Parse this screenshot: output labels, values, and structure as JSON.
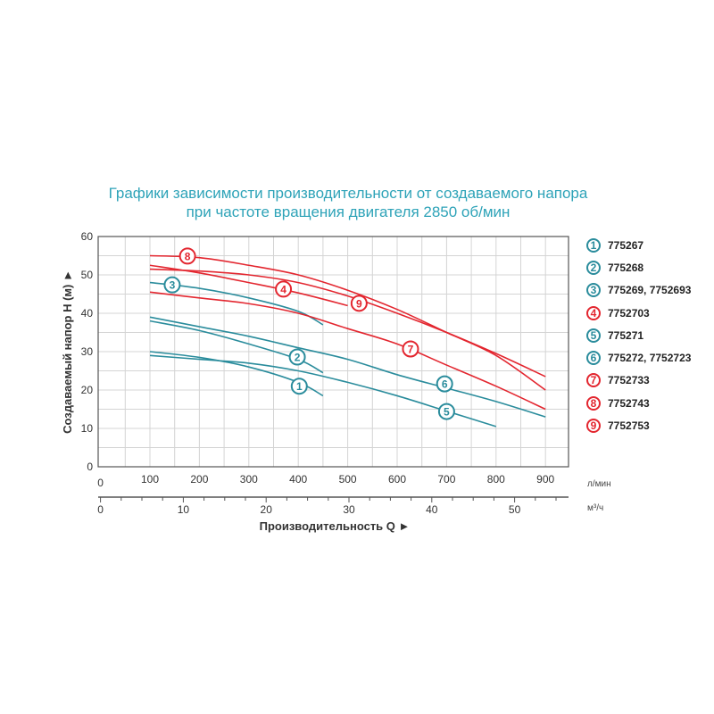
{
  "chart_data": {
    "type": "line",
    "title": "Графики зависимости производительности от создаваемого напора",
    "subtitle": "при частоте вращения двигателя 2850 об/мин",
    "ylabel": "Создаваемый напор H (м) ►",
    "xlabel": "Производительность Q ►",
    "x_unit": "л/мин",
    "x2_unit": "м³/ч",
    "ylim": [
      0,
      60
    ],
    "xlim": [
      0,
      950
    ],
    "x2lim": [
      0,
      57
    ],
    "yticks": [
      "0",
      "10",
      "20",
      "30",
      "40",
      "50",
      "60"
    ],
    "xticks": [
      "0",
      "100",
      "200",
      "300",
      "400",
      "500",
      "600",
      "700",
      "800",
      "900"
    ],
    "x2ticks": [
      "0",
      "10",
      "20",
      "30",
      "40",
      "50"
    ],
    "grid": true,
    "legend_placement": "right",
    "colors": {
      "teal": "#2a8c9c",
      "red": "#e3262f",
      "title": "#2ea3b8"
    },
    "series": [
      {
        "name": "1",
        "label": "775267",
        "color": "teal",
        "x": [
          100,
          200,
          300,
          400,
          450
        ],
        "y": [
          30,
          28.5,
          26,
          22,
          18.5
        ],
        "marker_at": [
          402,
          21
        ]
      },
      {
        "name": "2",
        "label": "775268",
        "color": "teal",
        "x": [
          100,
          200,
          300,
          400,
          450
        ],
        "y": [
          38,
          35.5,
          32,
          28,
          24.5
        ],
        "marker_at": [
          398,
          28.6
        ]
      },
      {
        "name": "3",
        "label": "775269, 7752693",
        "color": "teal",
        "x": [
          100,
          200,
          300,
          400,
          450
        ],
        "y": [
          48,
          46.5,
          44,
          40.5,
          37
        ],
        "marker_at": [
          145,
          47.4
        ]
      },
      {
        "name": "4",
        "label": "7752703",
        "color": "red",
        "x": [
          100,
          200,
          300,
          400,
          500
        ],
        "y": [
          52.5,
          50.5,
          48,
          45.3,
          42
        ],
        "marker_at": [
          370,
          46.3
        ]
      },
      {
        "name": "5",
        "label": "775271",
        "color": "teal",
        "x": [
          100,
          200,
          300,
          400,
          500,
          600,
          700,
          800
        ],
        "y": [
          29,
          28,
          27,
          25,
          22,
          18.5,
          14.5,
          10.5
        ],
        "marker_at": [
          700,
          14.4
        ]
      },
      {
        "name": "6",
        "label": "775272, 7752723",
        "color": "teal",
        "x": [
          100,
          200,
          300,
          400,
          500,
          600,
          700,
          800,
          900
        ],
        "y": [
          39,
          36.5,
          34,
          31,
          28,
          24,
          20.5,
          17,
          13
        ],
        "marker_at": [
          696,
          21.6
        ]
      },
      {
        "name": "7",
        "label": "7752733",
        "color": "red",
        "x": [
          100,
          200,
          300,
          400,
          500,
          600,
          700,
          800,
          900
        ],
        "y": [
          45.5,
          44,
          42.5,
          40,
          36,
          32,
          26.5,
          21,
          15
        ],
        "marker_at": [
          627,
          30.7
        ]
      },
      {
        "name": "8",
        "label": "7752743",
        "color": "red",
        "x": [
          100,
          200,
          300,
          400,
          500,
          600,
          700,
          800,
          900
        ],
        "y": [
          55,
          54.5,
          52.5,
          50,
          46,
          41,
          35,
          29,
          20
        ],
        "marker_at": [
          176,
          54.9
        ]
      },
      {
        "name": "9",
        "label": "7752753",
        "color": "red",
        "x": [
          100,
          200,
          300,
          400,
          500,
          600,
          700,
          800,
          900
        ],
        "y": [
          51.5,
          51,
          50,
          48,
          44.5,
          40,
          35,
          29.5,
          23.5
        ],
        "marker_at": [
          523,
          42.6
        ]
      }
    ]
  }
}
